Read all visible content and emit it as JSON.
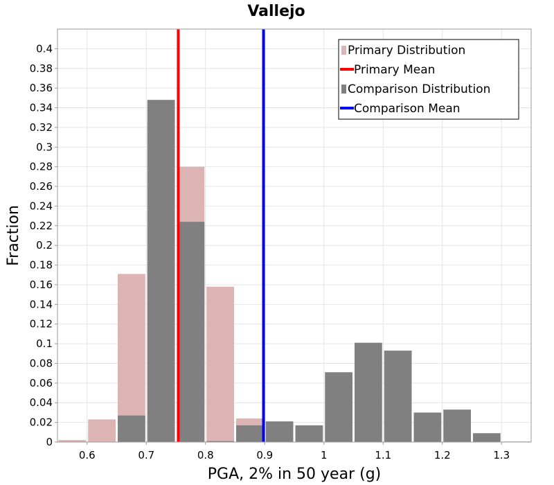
{
  "chart_data": {
    "type": "bar",
    "title": "Vallejo",
    "xlabel": "PGA, 2% in 50 year (g)",
    "ylabel": "Fraction",
    "xlim": [
      0.55,
      1.35
    ],
    "ylim": [
      0,
      0.42
    ],
    "bin_width": 0.05,
    "x_ticks": [
      "0.6",
      "0.7",
      "0.8",
      "0.9",
      "1",
      "1.1",
      "1.2",
      "1.3"
    ],
    "y_ticks": [
      "0",
      "0.02",
      "0.04",
      "0.06",
      "0.08",
      "0.1",
      "0.12",
      "0.14",
      "0.16",
      "0.18",
      "0.2",
      "0.22",
      "0.24",
      "0.26",
      "0.28",
      "0.3",
      "0.32",
      "0.34",
      "0.36",
      "0.38",
      "0.4"
    ],
    "grid": true,
    "legend_position": "top-right",
    "series": [
      {
        "name": "Primary Distribution",
        "kind": "histogram",
        "color": "#dcb4b4",
        "x": [
          0.575,
          0.625,
          0.675,
          0.725,
          0.775,
          0.825,
          0.875
        ],
        "values": [
          0.002,
          0.023,
          0.171,
          0.326,
          0.28,
          0.158,
          0.024
        ]
      },
      {
        "name": "Comparison Distribution",
        "kind": "histogram",
        "color": "#808080",
        "x": [
          0.675,
          0.725,
          0.775,
          0.825,
          0.875,
          0.925,
          0.975,
          1.025,
          1.075,
          1.125,
          1.175,
          1.225,
          1.275,
          1.325
        ],
        "values": [
          0.027,
          0.348,
          0.224,
          0.001,
          0.017,
          0.021,
          0.017,
          0.071,
          0.101,
          0.093,
          0.03,
          0.033,
          0.009,
          0.0005
        ]
      },
      {
        "name": "Primary Mean",
        "kind": "vline",
        "color": "#ff0000",
        "x": 0.754
      },
      {
        "name": "Comparison Mean",
        "kind": "vline",
        "color": "#0000ff",
        "x": 0.898
      }
    ],
    "legend": [
      {
        "label": "Primary Distribution",
        "style": "box",
        "color": "#dcb4b4"
      },
      {
        "label": "Primary Mean",
        "style": "line",
        "color": "#ff0000"
      },
      {
        "label": "Comparison Distribution",
        "style": "box",
        "color": "#808080"
      },
      {
        "label": "Comparison Mean",
        "style": "line",
        "color": "#0000ff"
      }
    ]
  }
}
